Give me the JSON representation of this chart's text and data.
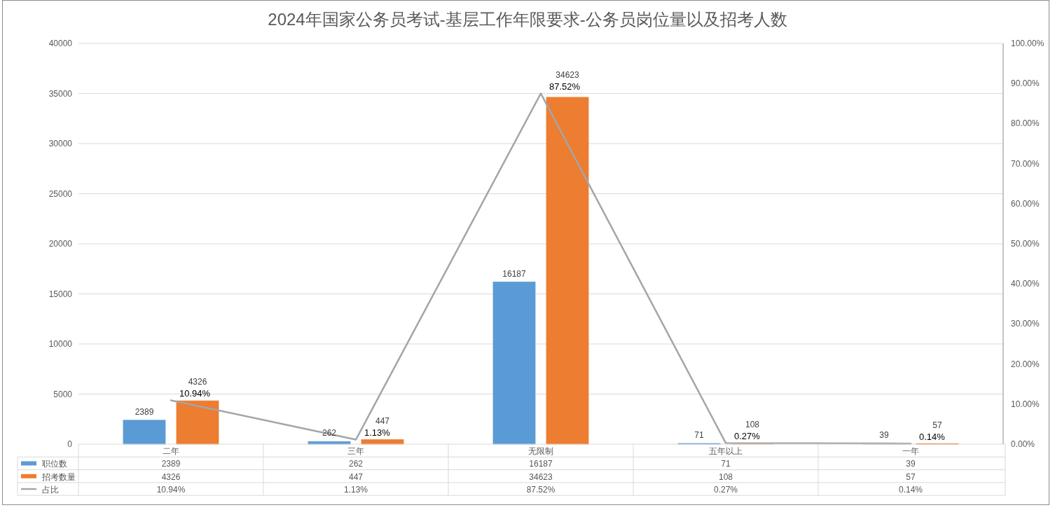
{
  "chart_data": {
    "type": "bar",
    "title": "2024年国家公务员考试-基层工作年限要求-公务员岗位量以及招考人数",
    "categories": [
      "二年",
      "三年",
      "无限制",
      "五年以上",
      "一年"
    ],
    "series": [
      {
        "name": "职位数",
        "color": "#5b9bd5",
        "values": [
          2389,
          262,
          16187,
          71,
          39
        ],
        "value_labels": [
          "2389",
          "262",
          "16187",
          "71",
          "39"
        ]
      },
      {
        "name": "招考数量",
        "color": "#ed7d31",
        "values": [
          4326,
          447,
          34623,
          108,
          57
        ],
        "value_labels": [
          "4326",
          "447",
          "34623",
          "108",
          "57"
        ]
      },
      {
        "name": "占比",
        "type": "line",
        "axis": "y2",
        "color": "#a5a5a5",
        "values": [
          10.94,
          1.13,
          87.52,
          0.27,
          0.14
        ],
        "value_labels": [
          "10.94%",
          "1.13%",
          "87.52%",
          "0.27%",
          "0.14%"
        ]
      }
    ],
    "ylim": [
      0,
      40000
    ],
    "yticks": [
      0,
      5000,
      10000,
      15000,
      20000,
      25000,
      30000,
      35000,
      40000
    ],
    "y2lim": [
      0,
      100
    ],
    "y2ticks": [
      {
        "value": 0,
        "label": "0.00%"
      },
      {
        "value": 10,
        "label": "10.00%"
      },
      {
        "value": 20,
        "label": "20.00%"
      },
      {
        "value": 30,
        "label": "30.00%"
      },
      {
        "value": 40,
        "label": "40.00%"
      },
      {
        "value": 50,
        "label": "50.00%"
      },
      {
        "value": 60,
        "label": "60.00%"
      },
      {
        "value": 70,
        "label": "70.00%"
      },
      {
        "value": 80,
        "label": "80.00%"
      },
      {
        "value": 90,
        "label": "90.00%"
      },
      {
        "value": 100,
        "label": "100.00%"
      }
    ],
    "grid": "y",
    "legend": "bottom"
  }
}
